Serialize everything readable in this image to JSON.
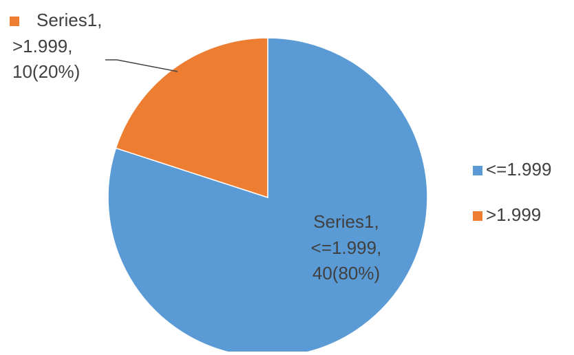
{
  "chart_data": {
    "type": "pie",
    "title": "",
    "series_name": "Series1",
    "categories": [
      "<=1.999",
      ">1.999"
    ],
    "values": [
      40,
      10
    ],
    "percents": [
      "80%",
      "20%"
    ],
    "colors": [
      "#5B9BD5",
      "#ED7D31"
    ],
    "start_angle_deg": 0,
    "direction": "clockwise",
    "data_labels": [
      [
        "Series1,",
        "<=1.999,",
        "40(80%)"
      ],
      [
        "Series1,",
        ">1.999,",
        "10(20%)"
      ]
    ],
    "legend": {
      "position": "right",
      "entries": [
        "<=1.999",
        ">1.999"
      ]
    }
  }
}
